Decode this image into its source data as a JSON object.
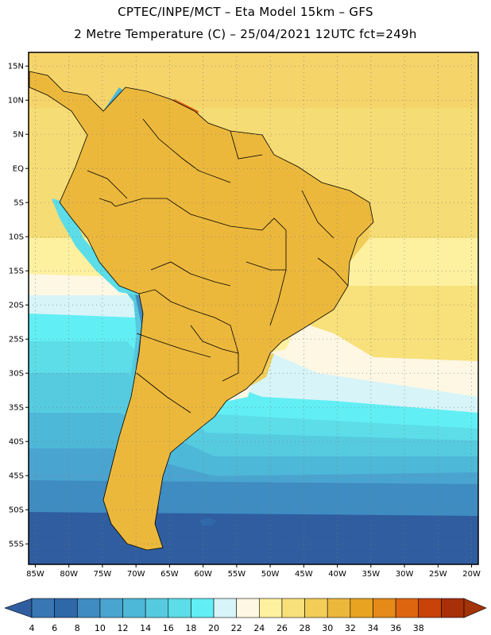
{
  "header": {
    "line1": "CPTEC/INPE/MCT –  Eta Model 15km – GFS",
    "line2": "2 Metre Temperature (C) – 25/04/2021 12UTC fct=249h"
  },
  "map": {
    "lon_range": [
      -86,
      -19
    ],
    "lat_range": [
      -58,
      17
    ],
    "lat_labels": [
      "15N",
      "10N",
      "5N",
      "EQ",
      "5S",
      "10S",
      "15S",
      "20S",
      "25S",
      "30S",
      "35S",
      "40S",
      "45S",
      "50S",
      "55S"
    ],
    "lat_values": [
      15,
      10,
      5,
      0,
      -5,
      -10,
      -15,
      -20,
      -25,
      -30,
      -35,
      -40,
      -45,
      -50,
      -55
    ],
    "lon_labels": [
      "85W",
      "80W",
      "75W",
      "70W",
      "65W",
      "60W",
      "55W",
      "50W",
      "45W",
      "40W",
      "35W",
      "30W",
      "25W",
      "20W"
    ],
    "lon_values": [
      -85,
      -80,
      -75,
      -70,
      -65,
      -60,
      -55,
      -50,
      -45,
      -40,
      -35,
      -30,
      -25,
      -20
    ]
  },
  "colorbar": {
    "labels": [
      "4",
      "6",
      "8",
      "10",
      "12",
      "14",
      "16",
      "18",
      "20",
      "22",
      "24",
      "26",
      "28",
      "30",
      "32",
      "34",
      "36",
      "38"
    ],
    "colors": [
      "#3977b4",
      "#2f68a8",
      "#3e8cc2",
      "#4aa4d0",
      "#4db8d8",
      "#56cbe0",
      "#5cdde8",
      "#62eef5",
      "#d7f4f8",
      "#fdf7e3",
      "#fdf1a0",
      "#f8e07a",
      "#f2cd58",
      "#ecb83c",
      "#e8a420",
      "#e58a18",
      "#de6510",
      "#c8420a",
      "#a83008"
    ],
    "under_color": "#2f5da0",
    "over_color": "#a33309"
  }
}
